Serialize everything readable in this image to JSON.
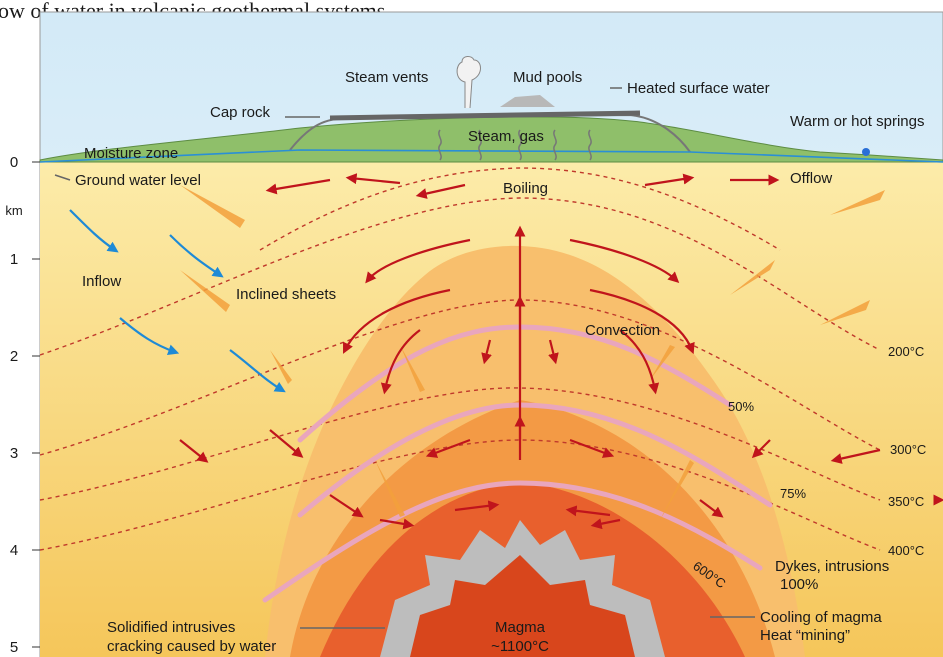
{
  "title": "ow of water in volcanic geothermal systems.",
  "depth_axis": {
    "unit": "km",
    "ticks": [
      "0",
      "1",
      "2",
      "3",
      "4",
      "5"
    ]
  },
  "surface": {
    "steam_vents": "Steam vents",
    "mud_pools": "Mud pools",
    "heated_surface_water": "Heated surface water",
    "cap_rock": "Cap rock",
    "springs": "Warm or hot springs",
    "steam_gas": "Steam, gas",
    "moisture_zone": "Moisture zone",
    "ground_water_level": "Ground water level"
  },
  "flow": {
    "boiling": "Boiling",
    "offlow": "Offlow",
    "inflow": "Inflow",
    "inclined_sheets": "Inclined sheets",
    "convection": "Convection"
  },
  "isotherms": [
    "200°C",
    "300°C",
    "350°C",
    "400°C",
    "600°C"
  ],
  "fractions": [
    "50%",
    "75%"
  ],
  "deep": {
    "dykes": [
      "Dykes, intrusions",
      "100%"
    ],
    "solidified": [
      "Solidified intrusives",
      "cracking caused by water"
    ],
    "magma": [
      "Magma",
      "~1100°C"
    ],
    "cooling": [
      "Cooling of magma",
      "Heat “mining”"
    ]
  }
}
